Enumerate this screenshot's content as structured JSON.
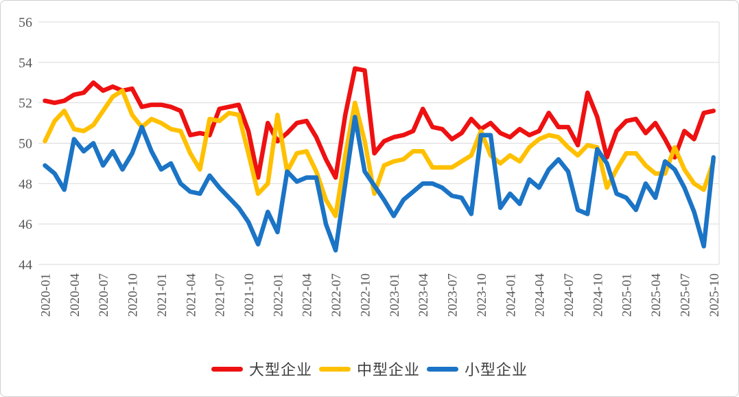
{
  "chart_data": {
    "type": "line",
    "title": "",
    "xlabel": "",
    "ylabel": "",
    "ylim": [
      44,
      56
    ],
    "y_ticks": [
      56,
      54,
      52,
      50,
      48,
      46,
      44
    ],
    "x_tick_every": 3,
    "grid": "horizontal",
    "legend_position": "bottom",
    "x": [
      "2020-01",
      "2020-02",
      "2020-03",
      "2020-04",
      "2020-05",
      "2020-06",
      "2020-07",
      "2020-08",
      "2020-09",
      "2020-10",
      "2020-11",
      "2020-12",
      "2021-01",
      "2021-02",
      "2021-03",
      "2021-04",
      "2021-05",
      "2021-06",
      "2021-07",
      "2021-08",
      "2021-09",
      "2021-10",
      "2021-11",
      "2021-12",
      "2022-01",
      "2022-02",
      "2022-03",
      "2022-04",
      "2022-05",
      "2022-06",
      "2022-07",
      "2022-08",
      "2022-09",
      "2022-10",
      "2022-11",
      "2022-12",
      "2023-01",
      "2023-02",
      "2023-03",
      "2023-04",
      "2023-05",
      "2023-06",
      "2023-07",
      "2023-08",
      "2023-09",
      "2023-10",
      "2023-11",
      "2023-12",
      "2024-01",
      "2024-02",
      "2024-03",
      "2024-04",
      "2024-05",
      "2024-06",
      "2024-07",
      "2024-08",
      "2024-09",
      "2024-10",
      "2024-11",
      "2024-12",
      "2025-01",
      "2025-02",
      "2025-03",
      "2025-04",
      "2025-05",
      "2025-06",
      "2025-07",
      "2025-08",
      "2025-09",
      "2025-10"
    ],
    "series": [
      {
        "name": "大型企业",
        "color": "#ee1111",
        "values": [
          52.1,
          52.0,
          52.1,
          52.4,
          52.5,
          53.0,
          52.6,
          52.8,
          52.6,
          52.7,
          51.8,
          51.9,
          51.9,
          51.8,
          51.6,
          50.4,
          50.5,
          50.4,
          51.7,
          51.8,
          51.9,
          50.6,
          48.3,
          51.0,
          50.1,
          50.5,
          51.0,
          51.1,
          50.3,
          49.2,
          48.3,
          51.4,
          53.7,
          53.6,
          49.5,
          50.1,
          50.3,
          50.4,
          50.6,
          51.7,
          50.8,
          50.7,
          50.2,
          50.5,
          51.2,
          50.7,
          51.0,
          50.5,
          50.3,
          50.7,
          50.4,
          50.6,
          51.5,
          50.8,
          50.8,
          49.9,
          52.5,
          51.3,
          49.3,
          50.6,
          51.1,
          51.2,
          50.5,
          51.0,
          50.2,
          49.3,
          50.6,
          50.2,
          51.5,
          51.6
        ]
      },
      {
        "name": "中型企业",
        "color": "#ffc000",
        "values": [
          50.1,
          51.1,
          51.6,
          50.7,
          50.6,
          50.9,
          51.6,
          52.3,
          52.6,
          51.4,
          50.8,
          51.2,
          51.0,
          50.7,
          50.6,
          49.5,
          48.7,
          51.2,
          51.1,
          51.5,
          51.4,
          49.5,
          47.5,
          48.0,
          51.4,
          48.6,
          49.5,
          49.6,
          48.6,
          47.2,
          46.4,
          49.4,
          52.0,
          50.1,
          47.5,
          48.9,
          49.1,
          49.2,
          49.6,
          49.6,
          48.8,
          48.8,
          48.8,
          49.1,
          49.4,
          50.6,
          49.4,
          49.0,
          49.4,
          49.1,
          49.8,
          50.2,
          50.4,
          50.3,
          49.8,
          49.4,
          49.9,
          49.8,
          47.8,
          48.7,
          49.5,
          49.5,
          48.9,
          48.5,
          48.5,
          49.8,
          48.7,
          48.0,
          47.7,
          49.1
        ]
      },
      {
        "name": "小型企业",
        "color": "#1b74c5",
        "values": [
          48.9,
          48.5,
          47.7,
          50.2,
          49.6,
          50.0,
          48.9,
          49.6,
          48.7,
          49.5,
          50.8,
          49.6,
          48.7,
          49.0,
          48.0,
          47.6,
          47.5,
          48.4,
          47.8,
          47.3,
          46.8,
          46.1,
          45.0,
          46.6,
          45.6,
          48.6,
          48.1,
          48.3,
          48.3,
          46.0,
          44.7,
          48.0,
          51.3,
          48.6,
          47.9,
          47.2,
          46.4,
          47.2,
          47.6,
          48.0,
          48.0,
          47.8,
          47.4,
          47.3,
          46.5,
          50.4,
          50.4,
          46.8,
          47.5,
          47.0,
          48.2,
          47.8,
          48.7,
          49.2,
          48.6,
          46.7,
          46.5,
          49.7,
          49.0,
          47.5,
          47.3,
          46.7,
          48.0,
          47.3,
          49.1,
          48.7,
          47.8,
          46.6,
          44.9,
          49.3
        ]
      }
    ]
  },
  "legend": {
    "items": [
      {
        "label": "大型企业"
      },
      {
        "label": "中型企业"
      },
      {
        "label": "小型企业"
      }
    ]
  },
  "style": {
    "grid_color": "#d9d9d9",
    "axis_text_color": "#595959",
    "y_font_size": 20,
    "x_font_size": 19,
    "line_width": 6.5
  }
}
